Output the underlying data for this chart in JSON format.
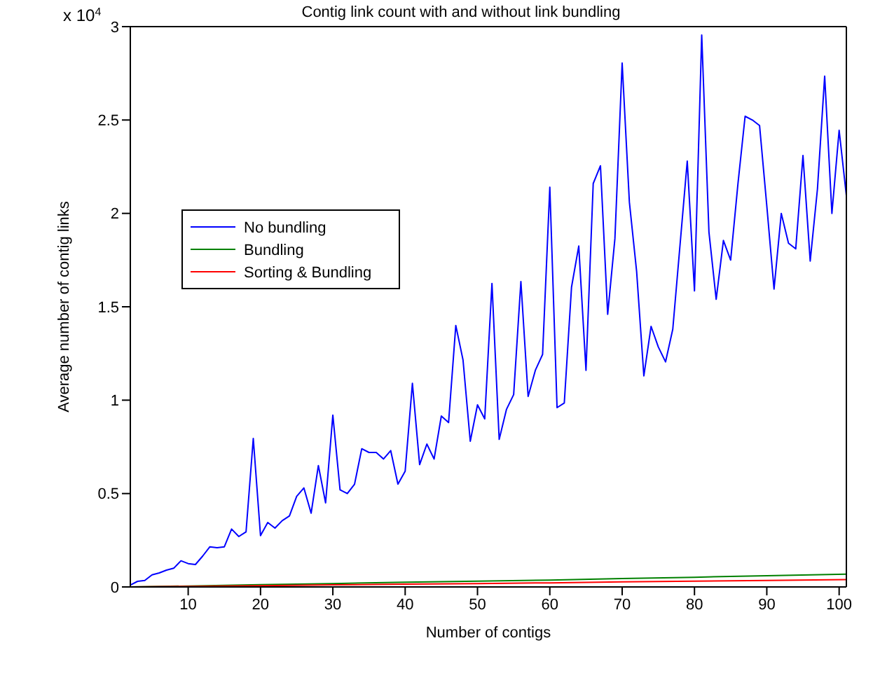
{
  "chart_data": {
    "type": "line",
    "title": "Contig link count with and without link bundling",
    "xlabel": "Number of contigs",
    "ylabel": "Average number of contig links",
    "annotations": [
      "x 10$^{4}$"
    ],
    "x": [
      2,
      3,
      4,
      5,
      6,
      7,
      8,
      9,
      10,
      11,
      12,
      13,
      14,
      15,
      16,
      17,
      18,
      19,
      20,
      21,
      22,
      23,
      24,
      25,
      26,
      27,
      28,
      29,
      30,
      31,
      32,
      33,
      34,
      35,
      36,
      37,
      38,
      39,
      40,
      41,
      42,
      43,
      44,
      45,
      46,
      47,
      48,
      49,
      50,
      51,
      52,
      53,
      54,
      55,
      56,
      57,
      58,
      59,
      60,
      61,
      62,
      63,
      64,
      65,
      66,
      67,
      68,
      69,
      70,
      71,
      72,
      73,
      74,
      75,
      76,
      77,
      78,
      79,
      80,
      81,
      82,
      83,
      84,
      85,
      86,
      87,
      88,
      89,
      90,
      91,
      92,
      93,
      94,
      95,
      96,
      97,
      98,
      99,
      100,
      101
    ],
    "series": [
      {
        "name": "No bundling",
        "color": "#0000ff",
        "values": [
          0.01,
          0.03,
          0.035,
          0.065,
          0.075,
          0.09,
          0.1,
          0.14,
          0.125,
          0.12,
          0.165,
          0.215,
          0.21,
          0.215,
          0.31,
          0.27,
          0.295,
          0.795,
          0.275,
          0.345,
          0.315,
          0.355,
          0.38,
          0.485,
          0.53,
          0.395,
          0.65,
          0.45,
          0.92,
          0.52,
          0.5,
          0.55,
          0.74,
          0.72,
          0.72,
          0.685,
          0.73,
          0.55,
          0.62,
          1.09,
          0.655,
          0.765,
          0.685,
          0.915,
          0.88,
          1.4,
          1.215,
          0.78,
          0.975,
          0.9,
          1.625,
          0.79,
          0.95,
          1.03,
          1.635,
          1.02,
          1.16,
          1.245,
          2.14,
          0.96,
          0.985,
          1.605,
          1.825,
          1.16,
          2.16,
          2.255,
          1.46,
          1.865,
          2.805,
          2.06,
          1.69,
          1.13,
          1.395,
          1.285,
          1.205,
          1.38,
          1.83,
          2.28,
          1.585,
          2.955,
          1.9,
          1.54,
          1.855,
          1.75,
          2.155,
          2.52,
          2.5,
          2.47,
          2.04,
          1.595,
          2.0,
          1.84,
          1.81,
          2.31,
          1.745,
          2.13,
          2.735,
          2.0,
          2.445,
          2.095
        ]
      },
      {
        "name": "Bundling",
        "color": "#008000",
        "x": [
          2,
          10,
          20,
          30,
          40,
          50,
          60,
          70,
          80,
          90,
          101
        ],
        "values": [
          0,
          0.005,
          0.012,
          0.018,
          0.025,
          0.031,
          0.037,
          0.045,
          0.052,
          0.06,
          0.068
        ]
      },
      {
        "name": "Sorting & Bundling",
        "color": "#ff0000",
        "x": [
          2,
          10,
          20,
          30,
          40,
          50,
          60,
          70,
          80,
          90,
          101
        ],
        "values": [
          0,
          0.003,
          0.007,
          0.011,
          0.015,
          0.018,
          0.022,
          0.027,
          0.031,
          0.035,
          0.039
        ]
      }
    ],
    "xlim": [
      2,
      101
    ],
    "xticks": [
      10,
      20,
      30,
      40,
      50,
      60,
      70,
      80,
      90,
      100
    ],
    "ylim": [
      0,
      3
    ],
    "yticks": [
      0,
      0.5,
      1,
      1.5,
      2,
      2.5,
      3
    ],
    "grid": false,
    "legend": "left",
    "marker": "none",
    "line_style": "solid"
  }
}
